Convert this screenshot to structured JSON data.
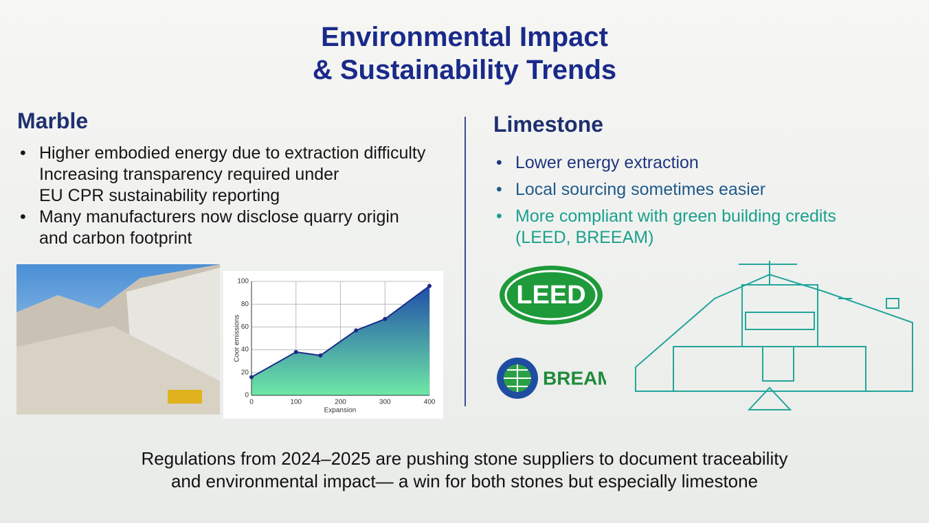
{
  "title": {
    "lines": [
      "Environmental Impact",
      "& Sustainability Trends"
    ]
  },
  "marble": {
    "heading": "Marble",
    "bullets": [
      {
        "lines": [
          "Higher embodied energy due to extraction difficulty",
          "Increasing transparency required under",
          "EU CPR sustainability reporting"
        ]
      },
      {
        "lines": [
          "Many manufacturers now disclose quarry origin",
          "and carbon footprint"
        ]
      }
    ]
  },
  "limestone": {
    "heading": "Limestone",
    "bullets": [
      {
        "lines": [
          "Lower energy extraction"
        ]
      },
      {
        "lines": [
          "Local sourcing sometimes easier"
        ]
      },
      {
        "lines": [
          "More compliant with green building credits",
          "(LEED, BREEAM)"
        ]
      }
    ],
    "logos": [
      "LEED",
      "BREAM"
    ]
  },
  "chart_data": {
    "type": "line",
    "x_label": "Expansion",
    "y_label": "Coor emissions",
    "x": [
      0,
      100,
      155,
      235,
      300,
      400
    ],
    "values": [
      16,
      38,
      35,
      57,
      67,
      96
    ],
    "color": "#1a2a8a",
    "xlim": [
      0,
      400
    ],
    "ylim": [
      0,
      100
    ],
    "xticks": [
      0,
      100,
      200,
      300,
      400
    ],
    "yticks": [
      0,
      20,
      40,
      60,
      80,
      100
    ],
    "grid": true
  },
  "footer": {
    "lines": [
      "Regulations from 2024–2025 are pushing stone suppliers to document traceability",
      "and environmental impact— a win for both stones but especially limestone"
    ]
  }
}
